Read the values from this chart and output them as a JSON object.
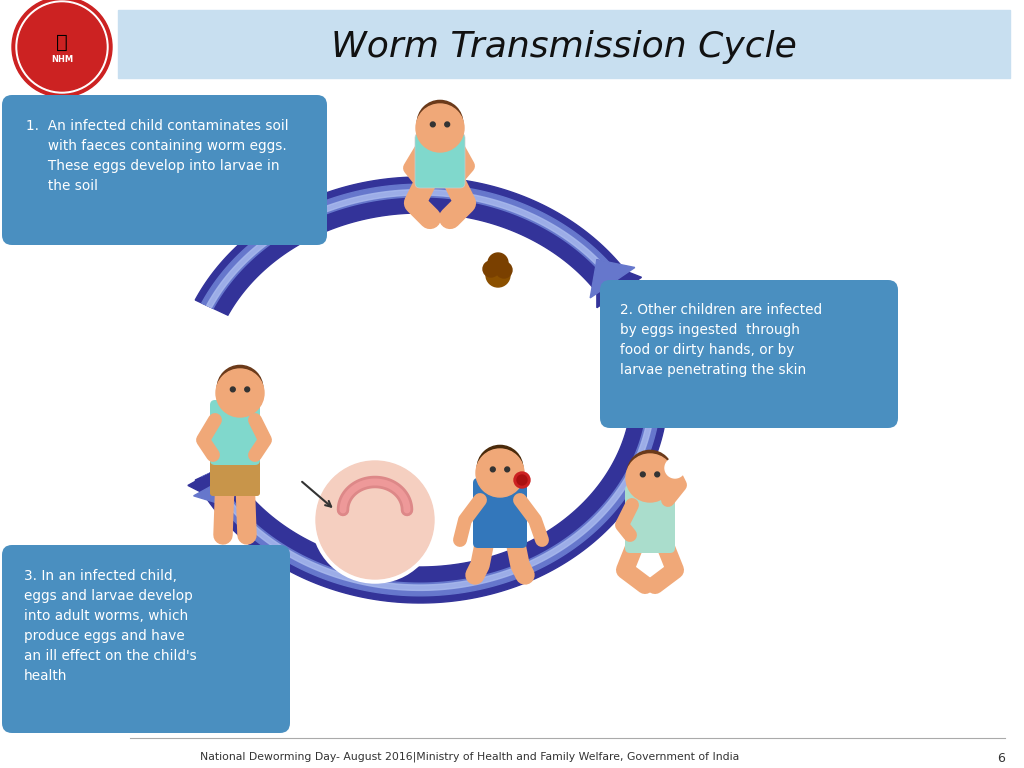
{
  "title": "Worm Transmission Cycle",
  "title_bg_color": "#c8dff0",
  "title_fontsize": 26,
  "bg_color": "#ffffff",
  "box1_text": "1.  An infected child contaminates soil\n     with faeces containing worm eggs.\n     These eggs develop into larvae in\n     the soil",
  "box2_text": "2. Other children are infected\nby eggs ingested  through\nfood or dirty hands, or by\nlarvae penetrating the skin",
  "box3_text": "3. In an infected child,\neggs and larvae develop\ninto adult worms, which\nproduce eggs and have\nan ill effect on the child's\nhealth",
  "box_color": "#4a8fc0",
  "box_text_color": "#ffffff",
  "footer_text": "National Deworming Day- August 2016|Ministry of Health and Family Welfare, Government of India",
  "footer_page": "6",
  "arrow_main_color": "#4455aa",
  "arrow_light_color": "#7788cc",
  "arrow_white": "#ffffff",
  "logo_outer_color": "#cc2222",
  "logo_inner_color": "#ffffff"
}
